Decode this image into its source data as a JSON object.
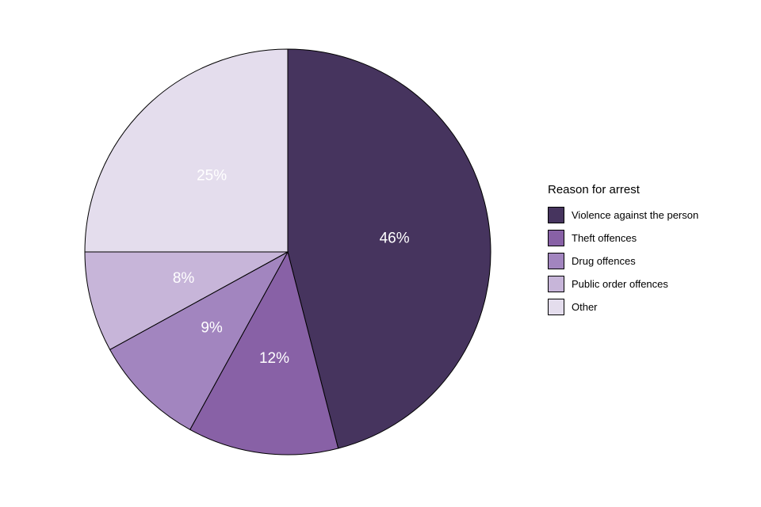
{
  "chart_data": {
    "type": "pie",
    "title": "",
    "legend_title": "Reason for arrest",
    "legend_position": "right",
    "start_angle": "top",
    "direction": "clockwise",
    "label_color": "#FFFFFF",
    "outline_color": "#000000",
    "slices": [
      {
        "label": "Violence against the person",
        "value": 46,
        "display": "46%",
        "color": "#46345E"
      },
      {
        "label": "Theft offences",
        "value": 12,
        "display": "12%",
        "color": "#8861A6"
      },
      {
        "label": "Drug offences",
        "value": 9,
        "display": "9%",
        "color": "#A285BF"
      },
      {
        "label": "Public order offences",
        "value": 8,
        "display": "8%",
        "color": "#C7B5D9"
      },
      {
        "label": "Other",
        "value": 25,
        "display": "25%",
        "color": "#E4DDED"
      }
    ]
  }
}
